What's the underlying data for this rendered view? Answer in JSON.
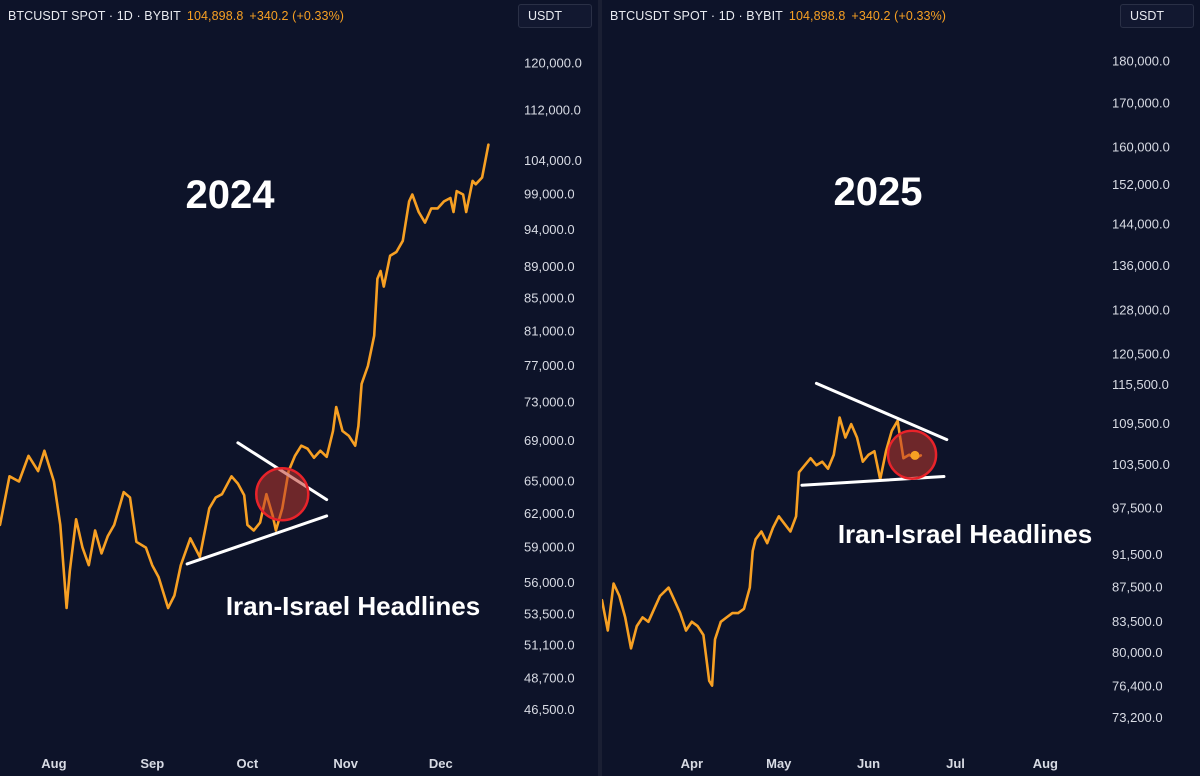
{
  "header": {
    "symbol": "BTCUSDT SPOT · 1D · BYBIT",
    "price": "104,898.8",
    "change": "+340.2 (+0.33%)",
    "currency": "USDT"
  },
  "colors": {
    "background": "#0d1329",
    "price_line": "#f7a023",
    "trend_lines": "#ffffff",
    "highlight_fill": "#c0392b",
    "highlight_stroke": "#e8232a",
    "axis_text": "#d8dbe4"
  },
  "chart_data": [
    {
      "type": "line",
      "title": "2024",
      "annotation": "Iran-Israel Headlines",
      "x_ticks": [
        "Aug",
        "Sep",
        "Oct",
        "Nov",
        "Dec"
      ],
      "y_ticks": [
        "120,000.0",
        "112,000.0",
        "104,000.0",
        "99,000.0",
        "94,000.0",
        "89,000.0",
        "85,000.0",
        "81,000.0",
        "77,000.0",
        "73,000.0",
        "69,000.0",
        "65,000.0",
        "62,000.0",
        "59,000.0",
        "56,000.0",
        "53,500.0",
        "51,100.0",
        "48,700.0",
        "46,500.0"
      ],
      "y_scale": "log",
      "ylim": [
        44500,
        126000
      ],
      "series": [
        {
          "x": [
            "2024-07-15",
            "2024-07-18",
            "2024-07-21",
            "2024-07-24",
            "2024-07-27",
            "2024-07-29",
            "2024-08-01",
            "2024-08-03",
            "2024-08-05",
            "2024-08-06",
            "2024-08-08",
            "2024-08-10",
            "2024-08-12",
            "2024-08-14",
            "2024-08-16",
            "2024-08-18",
            "2024-08-20",
            "2024-08-23",
            "2024-08-25",
            "2024-08-27",
            "2024-08-30",
            "2024-09-01",
            "2024-09-03",
            "2024-09-06",
            "2024-09-08",
            "2024-09-10",
            "2024-09-13",
            "2024-09-16",
            "2024-09-19",
            "2024-09-21",
            "2024-09-23",
            "2024-09-26",
            "2024-09-28",
            "2024-09-30",
            "2024-10-01",
            "2024-10-03",
            "2024-10-05",
            "2024-10-07",
            "2024-10-09",
            "2024-10-10",
            "2024-10-12",
            "2024-10-14",
            "2024-10-16",
            "2024-10-18",
            "2024-10-20",
            "2024-10-22",
            "2024-10-24",
            "2024-10-26",
            "2024-10-28",
            "2024-10-29",
            "2024-10-31",
            "2024-11-02",
            "2024-11-04",
            "2024-11-05",
            "2024-11-06",
            "2024-11-08",
            "2024-11-10",
            "2024-11-11",
            "2024-11-12",
            "2024-11-13",
            "2024-11-15",
            "2024-11-17",
            "2024-11-19",
            "2024-11-21",
            "2024-11-22",
            "2024-11-24",
            "2024-11-26",
            "2024-11-28",
            "2024-11-30",
            "2024-12-02",
            "2024-12-04",
            "2024-12-05",
            "2024-12-06",
            "2024-12-08",
            "2024-12-09",
            "2024-12-11",
            "2024-12-12",
            "2024-12-14",
            "2024-12-15",
            "2024-12-16"
          ],
          "y": [
            61000,
            65500,
            65000,
            67500,
            66000,
            68000,
            65000,
            61000,
            54000,
            57000,
            61500,
            59000,
            57500,
            60500,
            58500,
            60000,
            61000,
            64000,
            63500,
            59500,
            59000,
            57500,
            56500,
            54000,
            55000,
            57500,
            59800,
            58200,
            62500,
            63500,
            63800,
            65500,
            64800,
            63700,
            61000,
            60500,
            61200,
            63800,
            61800,
            60500,
            62500,
            66000,
            67500,
            68500,
            68200,
            67300,
            68000,
            67400,
            70000,
            72500,
            70000,
            69500,
            68500,
            70500,
            75000,
            77000,
            80500,
            87500,
            88500,
            86500,
            90500,
            91000,
            92500,
            98000,
            99000,
            96500,
            95000,
            97000,
            97000,
            98000,
            98500,
            96500,
            99500,
            99000,
            96500,
            101000,
            100500,
            101500,
            104000,
            106500
          ]
        }
      ]
    },
    {
      "type": "line",
      "title": "2025",
      "annotation": "Iran-Israel Headlines",
      "x_ticks": [
        "Apr",
        "May",
        "Jun",
        "Jul",
        "Aug"
      ],
      "y_ticks": [
        "180,000.0",
        "170,000.0",
        "160,000.0",
        "152,000.0",
        "144,000.0",
        "136,000.0",
        "128,000.0",
        "120,500.0",
        "115,500.0",
        "109,500.0",
        "103,500.0",
        "97,500.0",
        "91,500.0",
        "87,500.0",
        "83,500.0",
        "80,000.0",
        "76,400.0",
        "73,200.0"
      ],
      "y_scale": "log",
      "ylim": [
        71000,
        188000
      ],
      "series": [
        {
          "x": [
            "2025-03-01",
            "2025-03-03",
            "2025-03-05",
            "2025-03-07",
            "2025-03-09",
            "2025-03-11",
            "2025-03-13",
            "2025-03-15",
            "2025-03-17",
            "2025-03-19",
            "2025-03-21",
            "2025-03-24",
            "2025-03-26",
            "2025-03-28",
            "2025-03-30",
            "2025-04-01",
            "2025-04-03",
            "2025-04-05",
            "2025-04-07",
            "2025-04-08",
            "2025-04-09",
            "2025-04-11",
            "2025-04-13",
            "2025-04-15",
            "2025-04-17",
            "2025-04-19",
            "2025-04-21",
            "2025-04-22",
            "2025-04-23",
            "2025-04-25",
            "2025-04-27",
            "2025-04-29",
            "2025-05-01",
            "2025-05-03",
            "2025-05-05",
            "2025-05-07",
            "2025-05-08",
            "2025-05-10",
            "2025-05-12",
            "2025-05-14",
            "2025-05-16",
            "2025-05-18",
            "2025-05-20",
            "2025-05-22",
            "2025-05-24",
            "2025-05-26",
            "2025-05-28",
            "2025-05-30",
            "2025-06-01",
            "2025-06-03",
            "2025-06-05",
            "2025-06-07",
            "2025-06-09",
            "2025-06-11",
            "2025-06-13",
            "2025-06-15",
            "2025-06-17",
            "2025-06-19"
          ],
          "y": [
            86000,
            82500,
            88000,
            86500,
            84000,
            80500,
            83000,
            84000,
            83500,
            85000,
            86500,
            87500,
            86000,
            84500,
            82500,
            83500,
            83000,
            82000,
            77000,
            76500,
            81500,
            83500,
            84000,
            84500,
            84500,
            85000,
            87500,
            92000,
            93500,
            94500,
            93000,
            95000,
            96500,
            95500,
            94500,
            96500,
            102500,
            103500,
            104500,
            103500,
            104000,
            103000,
            105000,
            110500,
            107500,
            109500,
            107500,
            104000,
            105000,
            105500,
            101500,
            105500,
            108500,
            110000,
            104500,
            105000,
            104500,
            104900
          ]
        }
      ]
    }
  ]
}
